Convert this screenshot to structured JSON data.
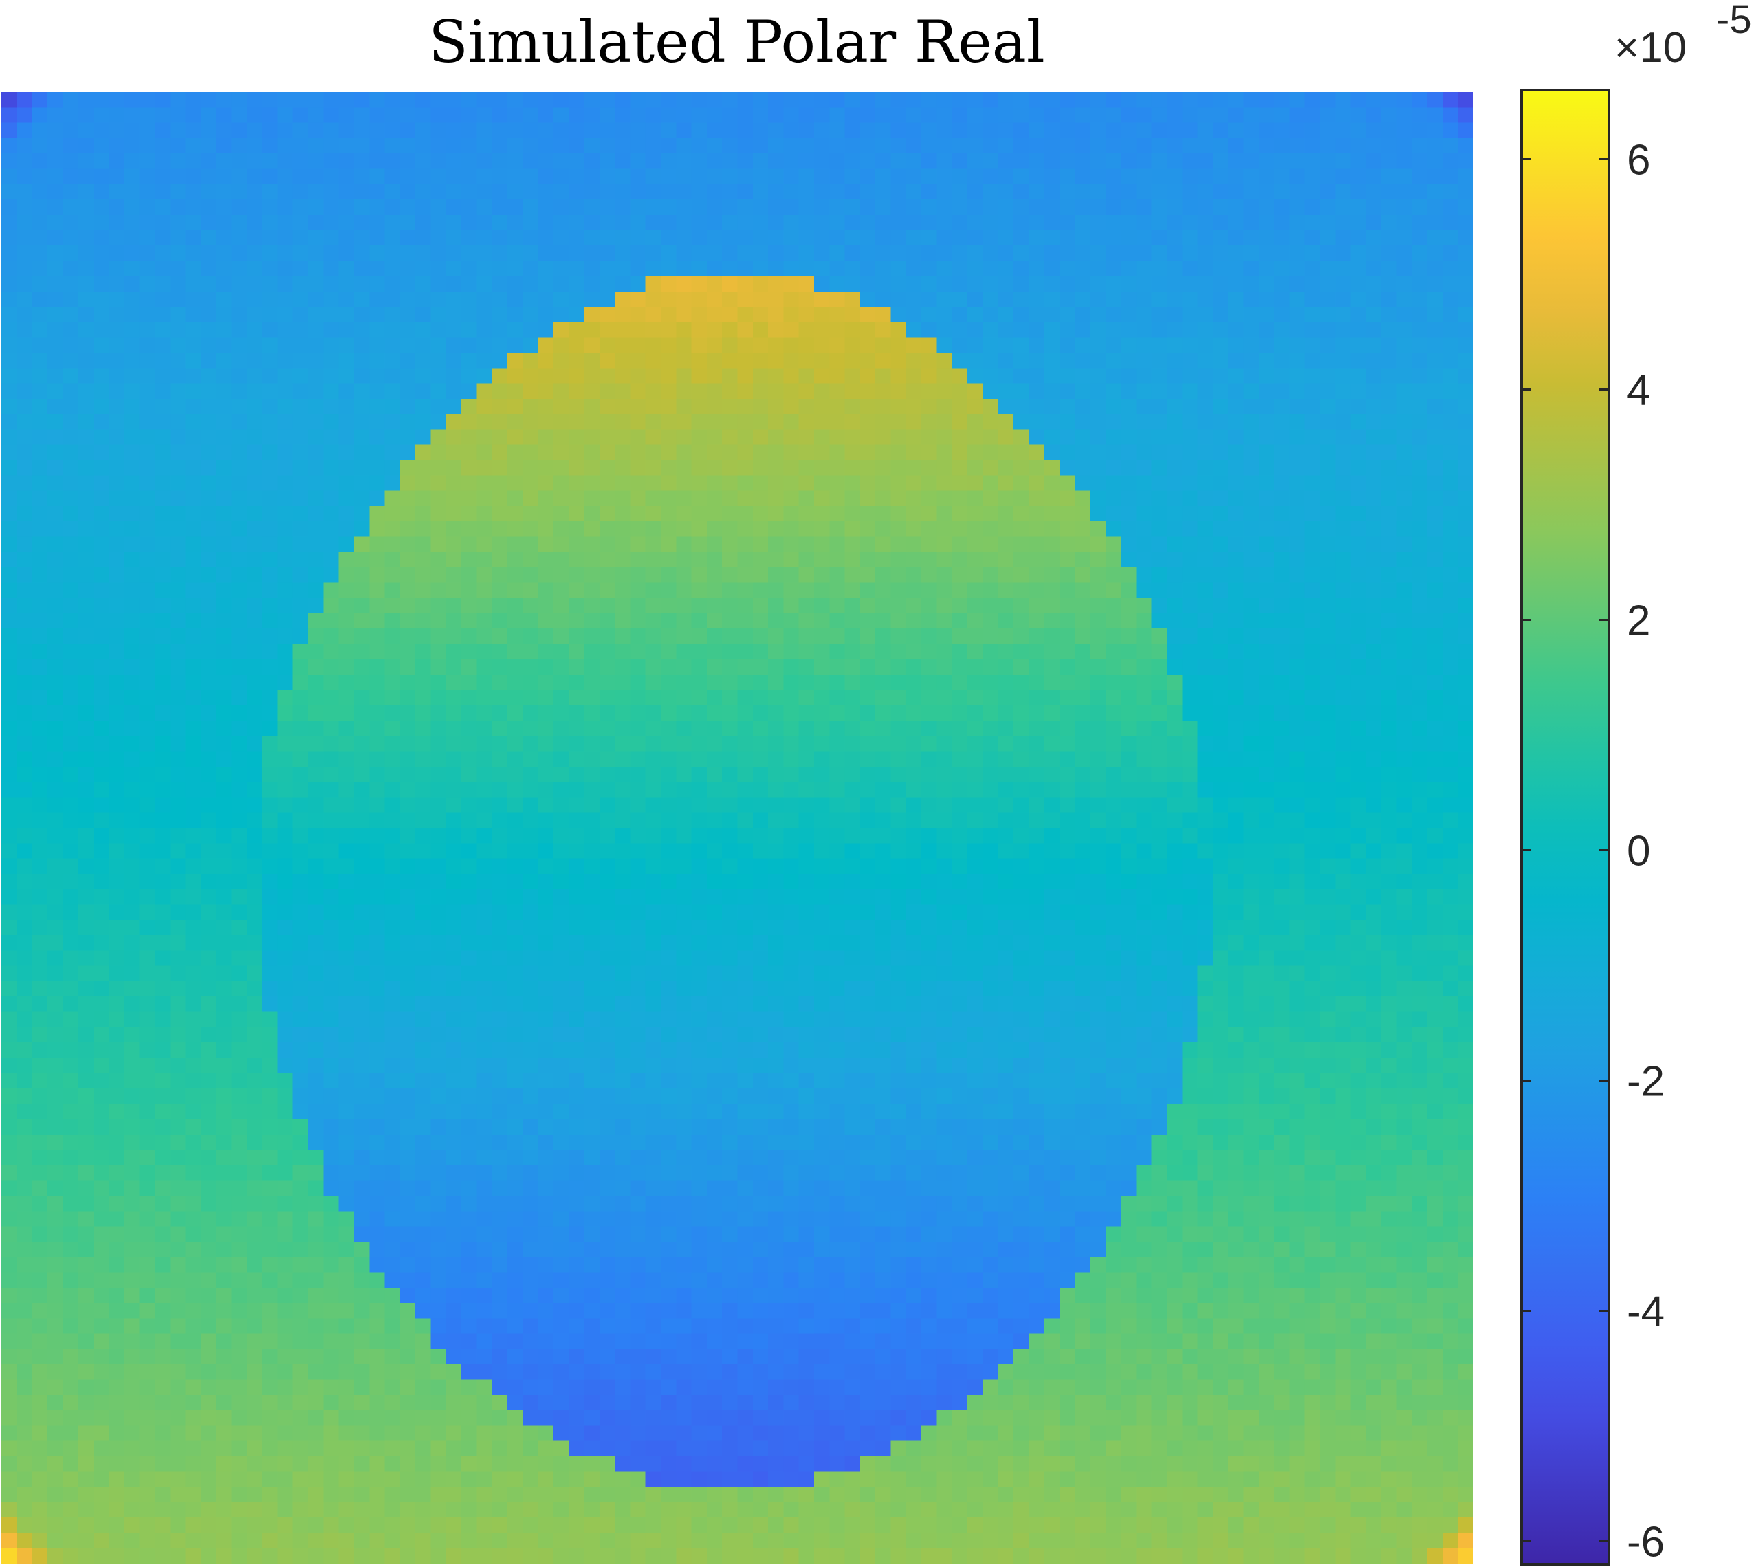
{
  "chart_data": {
    "type": "heatmap",
    "title": "Simulated Polar Real",
    "colormap": "parula",
    "color_limits": [
      -6.2,
      6.6
    ],
    "scale_exponent_label": {
      "prefix": "×10",
      "exponent": "-5"
    },
    "colorbar": {
      "ticks": [
        -6,
        -4,
        -2,
        0,
        2,
        4,
        6
      ],
      "tick_labels": [
        "-6",
        "-4",
        "-2",
        "0",
        "2",
        "4",
        "6"
      ]
    },
    "grid_shape": [
      96,
      96
    ],
    "regions": {
      "background_top_value": -2.6,
      "background_center_value": 0.0,
      "background_bottom_value": 3.0,
      "outer_ring_top_value": -5.3,
      "outer_ring_bottom_value": 6.2,
      "head_top_value": 4.6,
      "head_center_value": -0.4,
      "head_bottom_value": -4.2
    }
  }
}
